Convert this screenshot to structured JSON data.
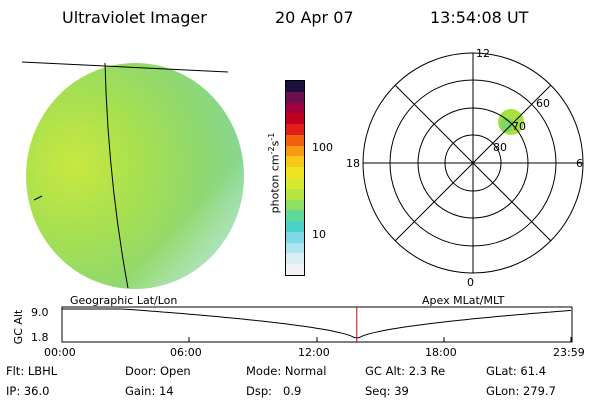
{
  "header": {
    "title": "Ultraviolet Imager",
    "date": "20 Apr 07",
    "time": "13:54:08 UT"
  },
  "colorbar": {
    "label": "photon cm",
    "label_sup1": "-2",
    "label_s": "s",
    "label_sup2": "-1",
    "ticks": [
      "100",
      "10"
    ],
    "colors": [
      "#f2f2f2",
      "#d8eef2",
      "#aee4ee",
      "#7fd8e8",
      "#4cd0c8",
      "#5fd89a",
      "#8ee060",
      "#b6e640",
      "#d8ea30",
      "#f0e420",
      "#f8c818",
      "#f89a10",
      "#f06010",
      "#e02018",
      "#c00020",
      "#a00040",
      "#6a1050",
      "#1a1040"
    ],
    "color_values": [
      3,
      3.6,
      4.3,
      5.2,
      6.2,
      7.5,
      9,
      11,
      13,
      16,
      20,
      25,
      32,
      42,
      56,
      75,
      100,
      140
    ]
  },
  "polar": {
    "mlt_labels": [
      "12",
      "6",
      "0",
      "18"
    ],
    "lat_labels": [
      "60",
      "70",
      "80"
    ]
  },
  "timeline": {
    "axis_label": "GC Alt",
    "y_ticks": [
      "9.0",
      "1.8"
    ],
    "x_ticks": [
      "00:00",
      "06:00",
      "12:00",
      "18:00",
      "23:59"
    ],
    "left_caption": "Geographic Lat/Lon",
    "right_caption": "Apex MLat/MLT",
    "current_time_hours": 13.9
  },
  "info": {
    "row1": [
      {
        "label": "Flt:",
        "value": "LBHL"
      },
      {
        "label": "Door:",
        "value": "Open"
      },
      {
        "label": "Mode:",
        "value": "Normal"
      },
      {
        "label": "GC Alt:",
        "value": "2.3 Re"
      },
      {
        "label": "GLat:",
        "value": "61.4"
      }
    ],
    "row2": [
      {
        "label": "IP:",
        "value": "36.0"
      },
      {
        "label": "Gain:",
        "value": "14"
      },
      {
        "label": "Dsp:",
        "value": "0.9"
      },
      {
        "label": "Seq:",
        "value": "39"
      },
      {
        "label": "GLon:",
        "value": "279.7"
      }
    ]
  }
}
